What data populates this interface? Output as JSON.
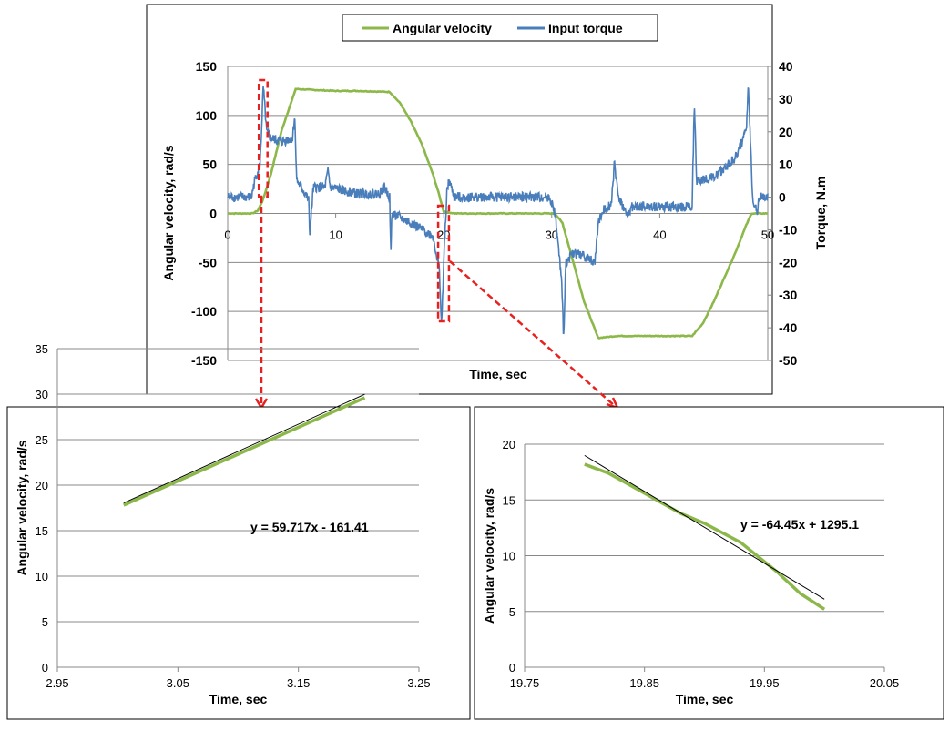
{
  "chart_data": [
    {
      "type": "line",
      "id": "main",
      "title": "",
      "xlabel": "Time, sec",
      "ylabel": "Angular velocity, rad/s",
      "y2label": "Torque, N.m",
      "xlim": [
        0,
        50
      ],
      "ylim": [
        -150,
        150
      ],
      "y2lim": [
        -50,
        40
      ],
      "xticks": [
        0,
        10,
        20,
        30,
        40,
        50
      ],
      "yticks": [
        150,
        100,
        50,
        0,
        -50,
        -100,
        -150
      ],
      "y2ticks": [
        40,
        30,
        20,
        10,
        0,
        -10,
        -20,
        -30,
        -40,
        -50
      ],
      "legend": {
        "placement": "top-center",
        "entries": [
          "Angular velocity",
          "Input torque"
        ]
      },
      "series": [
        {
          "name": "Angular velocity",
          "axis": "left",
          "color": "#8cb84a",
          "x": [
            0,
            2.3,
            2.8,
            3.3,
            4,
            5,
            6.3,
            8,
            10,
            12,
            15,
            16,
            17,
            18,
            19,
            19.5,
            20,
            21,
            30.3,
            31,
            32,
            33,
            34.3,
            36,
            40,
            43,
            44,
            45,
            46,
            47,
            48,
            48.5,
            50
          ],
          "y": [
            0,
            0,
            3,
            15,
            40,
            85,
            127,
            126,
            125,
            125,
            124,
            112,
            93,
            70,
            40,
            22,
            2,
            0,
            0,
            -10,
            -50,
            -90,
            -127,
            -125,
            -125,
            -125,
            -112,
            -90,
            -65,
            -40,
            -12,
            0,
            0
          ]
        },
        {
          "name": "Input torque",
          "axis": "right",
          "color": "#4a7ebb",
          "x": [
            0,
            2.2,
            2.5,
            3,
            3.3,
            3.6,
            4,
            5,
            6,
            6.2,
            6.4,
            7,
            7.5,
            7.6,
            7.9,
            8,
            9,
            9.3,
            9.5,
            12,
            14,
            14.5,
            15,
            15.1,
            15.2,
            17,
            19,
            19.6,
            19.8,
            20,
            20.3,
            20.5,
            21,
            29.8,
            30.3,
            30.9,
            31.1,
            31.3,
            32,
            33,
            34,
            34.3,
            34.8,
            35.5,
            35.8,
            36.2,
            37,
            37.4,
            38,
            43,
            43.2,
            43.4,
            45,
            47,
            48,
            48.2,
            48.6,
            49,
            49.2,
            50
          ],
          "y": [
            0,
            0,
            5,
            10,
            34,
            20,
            18,
            17,
            18,
            25,
            5,
            2,
            -1,
            -12,
            2,
            3,
            3,
            8,
            3,
            1,
            1,
            3,
            0,
            -18,
            -5,
            -8,
            -12,
            -22,
            -40,
            -20,
            2,
            5,
            0,
            0,
            -5,
            -25,
            -43,
            -20,
            -17,
            -18,
            -20,
            -8,
            -4,
            -2,
            10,
            0,
            -6,
            -3,
            -3,
            -3,
            30,
            5,
            6,
            12,
            20,
            34,
            0,
            -5,
            0,
            0
          ]
        }
      ],
      "highlights": [
        {
          "x": [
            2.8,
            3.6
          ]
        },
        {
          "x": [
            19.4,
            20.4
          ]
        }
      ]
    },
    {
      "type": "line",
      "id": "zoom1",
      "xlabel": "Time, sec",
      "ylabel": "Angular velocity, rad/s",
      "xlim": [
        2.95,
        3.25
      ],
      "ylim": [
        0,
        35
      ],
      "xticks": [
        "2.95",
        "3.05",
        "3.15",
        "3.25"
      ],
      "yticks": [
        0,
        5,
        10,
        15,
        20,
        25,
        30,
        35
      ],
      "series": [
        {
          "name": "Angular velocity",
          "color": "#8cb84a",
          "x": [
            3.005,
            3.205
          ],
          "y": [
            17.8,
            29.6
          ]
        }
      ],
      "trendline": {
        "slope": 59.717,
        "intercept": -161.41,
        "x": [
          3.005,
          3.205
        ],
        "equation": "y = 59.717x - 161.41"
      }
    },
    {
      "type": "line",
      "id": "zoom2",
      "xlabel": "Time, sec",
      "ylabel": "Angular velocity, rad/s",
      "xlim": [
        19.75,
        20.05
      ],
      "ylim": [
        0,
        20
      ],
      "xticks": [
        "19.75",
        "19.85",
        "19.95",
        "20.05"
      ],
      "yticks": [
        0,
        5,
        10,
        15,
        20
      ],
      "series": [
        {
          "name": "Angular velocity",
          "color": "#8cb84a",
          "x": [
            19.8,
            19.82,
            19.85,
            19.88,
            19.9,
            19.93,
            19.96,
            19.98,
            20.0
          ],
          "y": [
            18.2,
            17.4,
            15.6,
            13.8,
            12.9,
            11.2,
            8.6,
            6.6,
            5.2
          ]
        }
      ],
      "trendline": {
        "slope": -64.45,
        "intercept": 1295.1,
        "x": [
          19.8,
          20.0
        ],
        "equation": "y = -64.45x + 1295.1"
      }
    }
  ]
}
